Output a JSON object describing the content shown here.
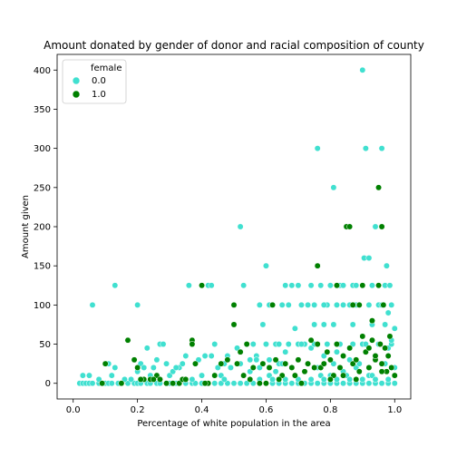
{
  "chart_data": {
    "type": "scatter",
    "title": "Amount donated by gender of donor and racial composition of county",
    "xlabel": "Percentage of white population in the area",
    "ylabel": "Amount given",
    "xlim": [
      -0.05,
      1.05
    ],
    "ylim": [
      -20,
      420
    ],
    "x_ticks": [
      "0.0",
      "0.2",
      "0.4",
      "0.6",
      "0.8",
      "1.0"
    ],
    "y_ticks": [
      "0",
      "50",
      "100",
      "150",
      "200",
      "250",
      "300",
      "350",
      "400"
    ],
    "grid": false,
    "legend": {
      "title": "female",
      "placement": "top-left",
      "entries": [
        "0.0",
        "1.0"
      ]
    },
    "series": [
      {
        "name": "0.0",
        "color": "#40e0d0",
        "points": [
          [
            0.02,
            0
          ],
          [
            0.03,
            0
          ],
          [
            0.04,
            0
          ],
          [
            0.05,
            0
          ],
          [
            0.06,
            0
          ],
          [
            0.08,
            0
          ],
          [
            0.1,
            0
          ],
          [
            0.11,
            0
          ],
          [
            0.12,
            0
          ],
          [
            0.14,
            0
          ],
          [
            0.15,
            0
          ],
          [
            0.17,
            0
          ],
          [
            0.19,
            0
          ],
          [
            0.2,
            0
          ],
          [
            0.21,
            0
          ],
          [
            0.23,
            0
          ],
          [
            0.24,
            0
          ],
          [
            0.26,
            0
          ],
          [
            0.27,
            0
          ],
          [
            0.29,
            0
          ],
          [
            0.3,
            0
          ],
          [
            0.32,
            0
          ],
          [
            0.33,
            0
          ],
          [
            0.35,
            0
          ],
          [
            0.37,
            0
          ],
          [
            0.38,
            0
          ],
          [
            0.4,
            0
          ],
          [
            0.42,
            0
          ],
          [
            0.44,
            0
          ],
          [
            0.46,
            0
          ],
          [
            0.48,
            0
          ],
          [
            0.5,
            0
          ],
          [
            0.52,
            0
          ],
          [
            0.54,
            0
          ],
          [
            0.56,
            0
          ],
          [
            0.58,
            0
          ],
          [
            0.6,
            0
          ],
          [
            0.62,
            0
          ],
          [
            0.64,
            0
          ],
          [
            0.66,
            0
          ],
          [
            0.68,
            0
          ],
          [
            0.7,
            0
          ],
          [
            0.72,
            0
          ],
          [
            0.74,
            0
          ],
          [
            0.76,
            0
          ],
          [
            0.78,
            0
          ],
          [
            0.8,
            0
          ],
          [
            0.82,
            0
          ],
          [
            0.84,
            0
          ],
          [
            0.86,
            0
          ],
          [
            0.88,
            0
          ],
          [
            0.9,
            0
          ],
          [
            0.92,
            0
          ],
          [
            0.94,
            0
          ],
          [
            0.96,
            0
          ],
          [
            0.98,
            0
          ],
          [
            1.0,
            0
          ],
          [
            0.03,
            10
          ],
          [
            0.05,
            10
          ],
          [
            0.08,
            5
          ],
          [
            0.11,
            25
          ],
          [
            0.13,
            20
          ],
          [
            0.12,
            10
          ],
          [
            0.16,
            5
          ],
          [
            0.2,
            15
          ],
          [
            0.21,
            25
          ],
          [
            0.22,
            20
          ],
          [
            0.23,
            45
          ],
          [
            0.25,
            20
          ],
          [
            0.27,
            50
          ],
          [
            0.28,
            50
          ],
          [
            0.29,
            25
          ],
          [
            0.3,
            10
          ],
          [
            0.31,
            15
          ],
          [
            0.33,
            20
          ],
          [
            0.34,
            25
          ],
          [
            0.35,
            35
          ],
          [
            0.36,
            125
          ],
          [
            0.38,
            25
          ],
          [
            0.39,
            30
          ],
          [
            0.41,
            35
          ],
          [
            0.42,
            125
          ],
          [
            0.43,
            125
          ],
          [
            0.44,
            50
          ],
          [
            0.45,
            20
          ],
          [
            0.46,
            10
          ],
          [
            0.47,
            25
          ],
          [
            0.48,
            35
          ],
          [
            0.49,
            20
          ],
          [
            0.5,
            100
          ],
          [
            0.51,
            45
          ],
          [
            0.52,
            200
          ],
          [
            0.53,
            125
          ],
          [
            0.54,
            50
          ],
          [
            0.55,
            30
          ],
          [
            0.56,
            50
          ],
          [
            0.57,
            35
          ],
          [
            0.58,
            100
          ],
          [
            0.59,
            75
          ],
          [
            0.6,
            150
          ],
          [
            0.61,
            100
          ],
          [
            0.62,
            100
          ],
          [
            0.63,
            50
          ],
          [
            0.64,
            25
          ],
          [
            0.65,
            100
          ],
          [
            0.66,
            125
          ],
          [
            0.67,
            100
          ],
          [
            0.68,
            125
          ],
          [
            0.69,
            70
          ],
          [
            0.7,
            50
          ],
          [
            0.71,
            100
          ],
          [
            0.72,
            50
          ],
          [
            0.73,
            100
          ],
          [
            0.74,
            125
          ],
          [
            0.75,
            100
          ],
          [
            0.76,
            300
          ],
          [
            0.77,
            125
          ],
          [
            0.78,
            75
          ],
          [
            0.79,
            100
          ],
          [
            0.8,
            125
          ],
          [
            0.81,
            250
          ],
          [
            0.82,
            100
          ],
          [
            0.83,
            125
          ],
          [
            0.84,
            100
          ],
          [
            0.85,
            200
          ],
          [
            0.86,
            100
          ],
          [
            0.87,
            125
          ],
          [
            0.88,
            100
          ],
          [
            0.89,
            100
          ],
          [
            0.9,
            400
          ],
          [
            0.905,
            160
          ],
          [
            0.91,
            300
          ],
          [
            0.92,
            160
          ],
          [
            0.93,
            125
          ],
          [
            0.94,
            200
          ],
          [
            0.95,
            100
          ],
          [
            0.96,
            300
          ],
          [
            0.965,
            100
          ],
          [
            0.97,
            125
          ],
          [
            0.98,
            90
          ],
          [
            0.99,
            100
          ],
          [
            1.0,
            70
          ],
          [
            0.06,
            100
          ],
          [
            0.13,
            125
          ],
          [
            0.2,
            100
          ],
          [
            0.18,
            5
          ],
          [
            0.24,
            10
          ],
          [
            0.26,
            30
          ],
          [
            0.32,
            20
          ],
          [
            0.37,
            5
          ],
          [
            0.4,
            10
          ],
          [
            0.43,
            35
          ],
          [
            0.47,
            5
          ],
          [
            0.52,
            25
          ],
          [
            0.55,
            15
          ],
          [
            0.58,
            20
          ],
          [
            0.61,
            30
          ],
          [
            0.63,
            15
          ],
          [
            0.66,
            40
          ],
          [
            0.68,
            20
          ],
          [
            0.7,
            30
          ],
          [
            0.72,
            15
          ],
          [
            0.74,
            45
          ],
          [
            0.76,
            20
          ],
          [
            0.78,
            35
          ],
          [
            0.8,
            10
          ],
          [
            0.82,
            40
          ],
          [
            0.84,
            15
          ],
          [
            0.86,
            30
          ],
          [
            0.88,
            20
          ],
          [
            0.9,
            50
          ],
          [
            0.92,
            10
          ],
          [
            0.94,
            35
          ],
          [
            0.96,
            25
          ],
          [
            0.98,
            45
          ],
          [
            1.0,
            20
          ],
          [
            0.6,
            50
          ],
          [
            0.64,
            50
          ],
          [
            0.67,
            50
          ],
          [
            0.71,
            50
          ],
          [
            0.75,
            50
          ],
          [
            0.79,
            50
          ],
          [
            0.83,
            50
          ],
          [
            0.87,
            50
          ],
          [
            0.91,
            50
          ],
          [
            0.95,
            50
          ],
          [
            0.99,
            50
          ],
          [
            0.57,
            30
          ],
          [
            0.61,
            10
          ],
          [
            0.65,
            25
          ],
          [
            0.69,
            10
          ],
          [
            0.73,
            25
          ],
          [
            0.77,
            10
          ],
          [
            0.81,
            25
          ],
          [
            0.85,
            10
          ],
          [
            0.89,
            25
          ],
          [
            0.93,
            10
          ],
          [
            0.97,
            25
          ],
          [
            0.58,
            5
          ],
          [
            0.62,
            5
          ],
          [
            0.66,
            5
          ],
          [
            0.7,
            5
          ],
          [
            0.74,
            5
          ],
          [
            0.78,
            5
          ],
          [
            0.82,
            5
          ],
          [
            0.86,
            5
          ],
          [
            0.9,
            5
          ],
          [
            0.94,
            5
          ],
          [
            0.98,
            5
          ],
          [
            0.62,
            100
          ],
          [
            0.7,
            125
          ],
          [
            0.78,
            100
          ],
          [
            0.84,
            125
          ],
          [
            0.88,
            125
          ],
          [
            0.92,
            100
          ],
          [
            0.96,
            100
          ],
          [
            0.975,
            150
          ],
          [
            0.985,
            125
          ],
          [
            0.93,
            75
          ],
          [
            0.87,
            75
          ],
          [
            0.81,
            75
          ],
          [
            0.75,
            75
          ],
          [
            0.97,
            75
          ],
          [
            0.99,
            55
          ]
        ]
      },
      {
        "name": "1.0",
        "color": "#008000",
        "points": [
          [
            0.09,
            0
          ],
          [
            0.15,
            0
          ],
          [
            0.19,
            30
          ],
          [
            0.17,
            55
          ],
          [
            0.2,
            20
          ],
          [
            0.22,
            5
          ],
          [
            0.24,
            5
          ],
          [
            0.26,
            10
          ],
          [
            0.27,
            5
          ],
          [
            0.29,
            0
          ],
          [
            0.31,
            0
          ],
          [
            0.33,
            0
          ],
          [
            0.34,
            5
          ],
          [
            0.37,
            55
          ],
          [
            0.37,
            50
          ],
          [
            0.38,
            25
          ],
          [
            0.4,
            125
          ],
          [
            0.42,
            0
          ],
          [
            0.44,
            10
          ],
          [
            0.46,
            25
          ],
          [
            0.48,
            30
          ],
          [
            0.5,
            100
          ],
          [
            0.5,
            75
          ],
          [
            0.51,
            25
          ],
          [
            0.52,
            40
          ],
          [
            0.54,
            50
          ],
          [
            0.53,
            10
          ],
          [
            0.56,
            20
          ],
          [
            0.58,
            0
          ],
          [
            0.59,
            25
          ],
          [
            0.61,
            20
          ],
          [
            0.62,
            100
          ],
          [
            0.63,
            30
          ],
          [
            0.65,
            10
          ],
          [
            0.66,
            25
          ],
          [
            0.68,
            20
          ],
          [
            0.7,
            30
          ],
          [
            0.71,
            0
          ],
          [
            0.73,
            25
          ],
          [
            0.74,
            55
          ],
          [
            0.76,
            150
          ],
          [
            0.76,
            50
          ],
          [
            0.77,
            20
          ],
          [
            0.78,
            25
          ],
          [
            0.79,
            40
          ],
          [
            0.8,
            30
          ],
          [
            0.81,
            10
          ],
          [
            0.82,
            125
          ],
          [
            0.82,
            50
          ],
          [
            0.83,
            20
          ],
          [
            0.84,
            35
          ],
          [
            0.85,
            200
          ],
          [
            0.86,
            200
          ],
          [
            0.86,
            45
          ],
          [
            0.87,
            25
          ],
          [
            0.88,
            30
          ],
          [
            0.89,
            100
          ],
          [
            0.89,
            15
          ],
          [
            0.9,
            60
          ],
          [
            0.91,
            40
          ],
          [
            0.92,
            20
          ],
          [
            0.93,
            80
          ],
          [
            0.94,
            30
          ],
          [
            0.95,
            250
          ],
          [
            0.95,
            125
          ],
          [
            0.955,
            50
          ],
          [
            0.96,
            200
          ],
          [
            0.96,
            25
          ],
          [
            0.965,
            100
          ],
          [
            0.97,
            45
          ],
          [
            0.975,
            15
          ],
          [
            0.98,
            35
          ],
          [
            0.99,
            20
          ],
          [
            1.0,
            10
          ],
          [
            0.1,
            25
          ],
          [
            0.21,
            5
          ],
          [
            0.25,
            5
          ],
          [
            0.35,
            5
          ],
          [
            0.41,
            0
          ],
          [
            0.55,
            5
          ],
          [
            0.6,
            0
          ],
          [
            0.64,
            5
          ],
          [
            0.69,
            10
          ],
          [
            0.72,
            15
          ],
          [
            0.75,
            20
          ],
          [
            0.8,
            5
          ],
          [
            0.84,
            10
          ],
          [
            0.88,
            5
          ],
          [
            0.92,
            45
          ],
          [
            0.94,
            35
          ],
          [
            0.96,
            15
          ],
          [
            0.985,
            60
          ],
          [
            0.9,
            125
          ],
          [
            0.87,
            100
          ],
          [
            0.93,
            55
          ]
        ]
      }
    ]
  }
}
